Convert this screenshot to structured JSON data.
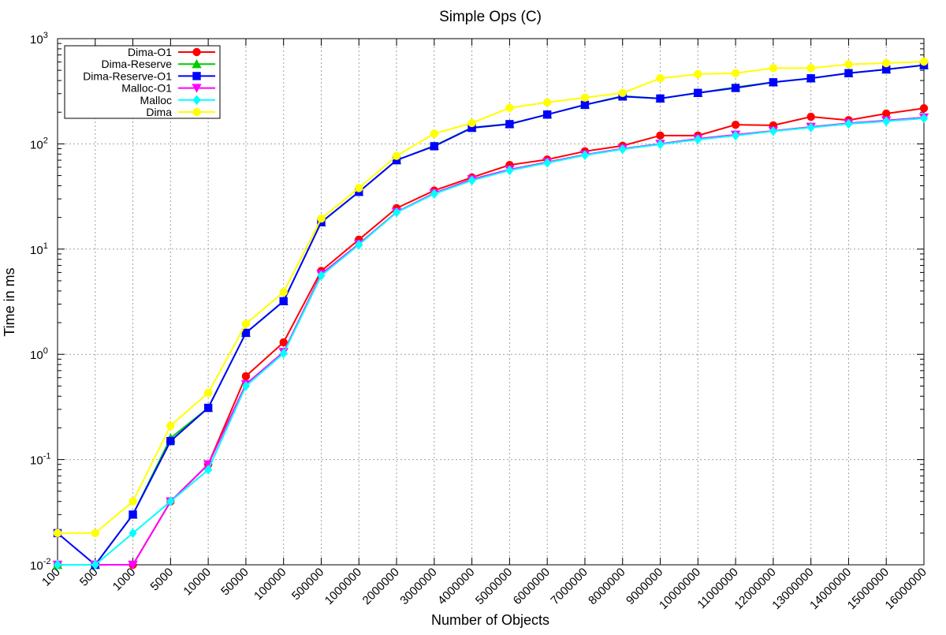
{
  "chart_data": {
    "type": "line",
    "title": "Simple Ops (C)",
    "xlabel": "Number of Objects",
    "ylabel": "Time in ms",
    "y_scale": "log",
    "ylim": [
      0.01,
      1000
    ],
    "y_ticks": [
      {
        "value": 0.01,
        "base": "10",
        "exp": "-2"
      },
      {
        "value": 0.1,
        "base": "10",
        "exp": "-1"
      },
      {
        "value": 1,
        "base": "10",
        "exp": "0"
      },
      {
        "value": 10,
        "base": "10",
        "exp": "1"
      },
      {
        "value": 100,
        "base": "10",
        "exp": "2"
      },
      {
        "value": 1000,
        "base": "10",
        "exp": "3"
      }
    ],
    "categories": [
      "100",
      "500",
      "1000",
      "5000",
      "10000",
      "50000",
      "100000",
      "500000",
      "1000000",
      "2000000",
      "3000000",
      "4000000",
      "5000000",
      "6000000",
      "7000000",
      "8000000",
      "9000000",
      "10000000",
      "11000000",
      "12000000",
      "13000000",
      "14000000",
      "15000000",
      "16000000"
    ],
    "grid": true,
    "legend_position": "top-left",
    "series": [
      {
        "name": "Dima-O1",
        "color": "#ff0000",
        "marker": "circle",
        "values": [
          0.01,
          0.01,
          0.01,
          0.04,
          0.09,
          0.62,
          1.3,
          6.2,
          12.3,
          24.5,
          36,
          48,
          63,
          71,
          85,
          96,
          120,
          120,
          152,
          150,
          181,
          168,
          194,
          218
        ]
      },
      {
        "name": "Dima-Reserve",
        "color": "#00cc00",
        "marker": "triangle",
        "values": [
          0.01,
          0.01,
          0.03,
          0.16,
          0.31,
          1.6,
          3.2,
          18,
          35,
          70,
          96,
          143,
          155,
          190,
          235,
          285,
          270,
          305,
          345,
          385,
          420,
          470,
          510,
          560
        ]
      },
      {
        "name": "Dima-Reserve-O1",
        "color": "#0000ff",
        "marker": "square",
        "values": [
          0.02,
          0.01,
          0.03,
          0.15,
          0.31,
          1.6,
          3.2,
          18,
          35,
          70,
          95,
          142,
          154,
          190,
          235,
          282,
          270,
          305,
          340,
          385,
          420,
          470,
          510,
          560
        ]
      },
      {
        "name": "Malloc-O1",
        "color": "#ff00ff",
        "marker": "triangle-down",
        "values": [
          0.01,
          0.01,
          0.01,
          0.04,
          0.09,
          0.52,
          1.05,
          5.8,
          11.2,
          22.5,
          34,
          46,
          57,
          67,
          79,
          90,
          100,
          112,
          122,
          133,
          145,
          157,
          167,
          178
        ]
      },
      {
        "name": "Malloc",
        "color": "#00ffff",
        "marker": "diamond",
        "values": [
          0.01,
          0.01,
          0.02,
          0.04,
          0.08,
          0.5,
          1.02,
          5.6,
          11,
          22.3,
          33.5,
          45,
          56,
          66,
          78,
          89,
          99,
          110,
          120,
          132,
          143,
          155,
          164,
          175
        ]
      },
      {
        "name": "Dima",
        "color": "#ffff00",
        "marker": "circle",
        "values": [
          0.02,
          0.02,
          0.04,
          0.21,
          0.43,
          1.95,
          3.9,
          19.5,
          38,
          77,
          125,
          158,
          220,
          248,
          275,
          305,
          420,
          460,
          470,
          525,
          525,
          570,
          585,
          605
        ]
      }
    ]
  }
}
